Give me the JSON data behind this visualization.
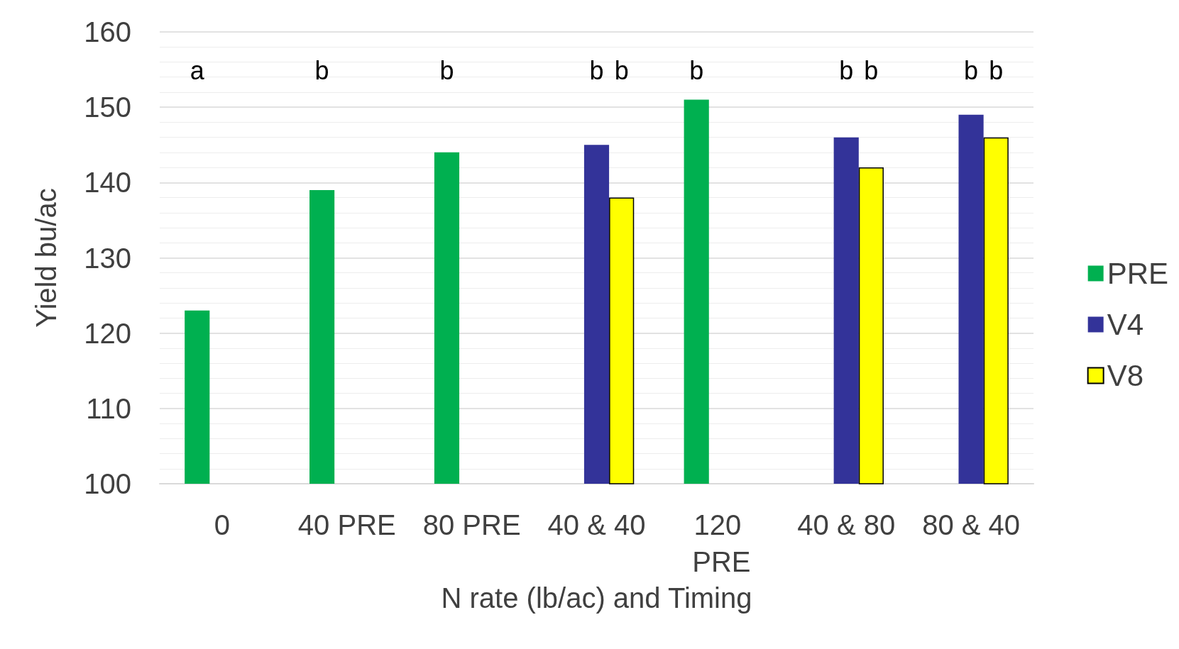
{
  "chart_data": {
    "type": "bar",
    "xlabel": "N rate (lb/ac) and Timing",
    "ylabel": "Yield bu/ac",
    "categories": [
      "0",
      "40 PRE",
      "80 PRE",
      "40 & 40",
      "120 PRE",
      "40 & 80",
      "80 & 40"
    ],
    "series": [
      {
        "name": "PRE",
        "color": "#00b050",
        "values": [
          123,
          139,
          144,
          null,
          151,
          null,
          null
        ]
      },
      {
        "name": "V4",
        "color": "#333399",
        "values": [
          null,
          null,
          null,
          145,
          null,
          146,
          149
        ]
      },
      {
        "name": "V8",
        "color": "#ffff00",
        "values": [
          null,
          null,
          null,
          138,
          null,
          142,
          146
        ]
      }
    ],
    "annotations": [
      "a",
      "b",
      "b",
      "b",
      "b",
      "b",
      "b",
      "b",
      "b",
      "b"
    ],
    "ylim": [
      100,
      160
    ],
    "yticks": [
      100,
      110,
      120,
      130,
      140,
      150,
      160
    ],
    "grid": "y",
    "legend": "right"
  }
}
